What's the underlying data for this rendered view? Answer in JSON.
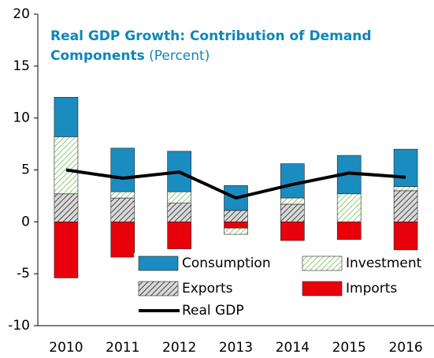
{
  "chart_data": {
    "type": "stacked_bar_line",
    "title": "Real GDP Growth: Contribution of Demand Components",
    "subtitle": "(Percent)",
    "categories": [
      "2010",
      "2011",
      "2012",
      "2013",
      "2014",
      "2015",
      "2016"
    ],
    "series": [
      {
        "name": "Consumption",
        "color": "#1b8cbf",
        "hatch": false,
        "values": [
          3.8,
          4.2,
          3.9,
          2.4,
          3.3,
          3.7,
          3.6
        ]
      },
      {
        "name": "Investment",
        "color": "#8cc97a",
        "hatch": true,
        "values": [
          5.5,
          0.6,
          1.1,
          -0.6,
          0.6,
          2.7,
          0.4
        ]
      },
      {
        "name": "Exports",
        "color": "#444444",
        "hatch": true,
        "values": [
          2.7,
          2.3,
          1.8,
          1.1,
          1.7,
          0,
          3.0
        ]
      },
      {
        "name": "Imports",
        "color": "#e8000b",
        "hatch": false,
        "values": [
          -5.4,
          -3.4,
          -2.6,
          -0.6,
          -1.8,
          -1.7,
          -2.7
        ]
      },
      {
        "name": "Real GDP",
        "type": "line",
        "color": "#000000",
        "values": [
          5.0,
          4.2,
          4.8,
          2.3,
          3.6,
          4.7,
          4.3
        ]
      }
    ],
    "ylim": [
      -10,
      20
    ],
    "yticks": [
      -10,
      -5,
      0,
      5,
      10,
      15,
      20
    ],
    "grid": false
  }
}
